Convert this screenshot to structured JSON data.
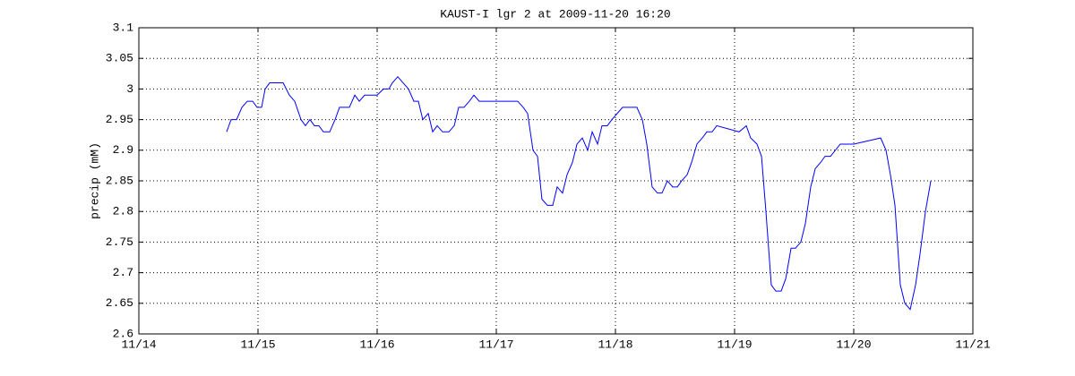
{
  "chart_data": {
    "type": "line",
    "title": "KAUST-I lgr 2 at 2009-11-20 16:20",
    "ylabel": "precip (mM)",
    "x": [
      14.737,
      14.774,
      14.82,
      14.865,
      14.91,
      14.955,
      14.992,
      15.03,
      15.06,
      15.098,
      15.211,
      15.263,
      15.308,
      15.361,
      15.398,
      15.436,
      15.474,
      15.511,
      15.549,
      15.602,
      15.647,
      15.684,
      15.767,
      15.812,
      15.85,
      15.895,
      16.0,
      16.053,
      16.098,
      16.128,
      16.173,
      16.263,
      16.308,
      16.346,
      16.383,
      16.429,
      16.466,
      16.504,
      16.549,
      16.602,
      16.647,
      16.684,
      16.729,
      16.774,
      16.812,
      16.857,
      17.18,
      17.226,
      17.263,
      17.308,
      17.346,
      17.383,
      17.429,
      17.474,
      17.511,
      17.556,
      17.594,
      17.639,
      17.677,
      17.722,
      17.767,
      17.805,
      17.85,
      17.887,
      17.932,
      17.97,
      18.015,
      18.06,
      18.18,
      18.226,
      18.263,
      18.308,
      18.353,
      18.391,
      18.436,
      18.481,
      18.519,
      18.556,
      18.602,
      18.639,
      18.684,
      18.729,
      18.767,
      18.812,
      18.85,
      19.038,
      19.098,
      19.135,
      19.188,
      19.226,
      19.263,
      19.308,
      19.346,
      19.391,
      19.429,
      19.474,
      19.511,
      19.556,
      19.594,
      19.639,
      19.677,
      19.722,
      19.759,
      19.805,
      19.887,
      20.0,
      20.226,
      20.271,
      20.308,
      20.346,
      20.391,
      20.429,
      20.474,
      20.519,
      20.556,
      20.602,
      20.647
    ],
    "series": [
      {
        "name": "precip",
        "color": "#0000ff",
        "values": [
          2.93,
          2.95,
          2.95,
          2.97,
          2.98,
          2.98,
          2.97,
          2.97,
          3.0,
          3.01,
          3.01,
          2.99,
          2.98,
          2.95,
          2.94,
          2.95,
          2.94,
          2.94,
          2.93,
          2.93,
          2.95,
          2.97,
          2.97,
          2.99,
          2.98,
          2.99,
          2.99,
          3.0,
          3.0,
          3.01,
          3.02,
          3.0,
          2.98,
          2.98,
          2.95,
          2.96,
          2.93,
          2.94,
          2.93,
          2.93,
          2.94,
          2.97,
          2.97,
          2.98,
          2.99,
          2.98,
          2.98,
          2.97,
          2.96,
          2.9,
          2.89,
          2.82,
          2.81,
          2.81,
          2.84,
          2.83,
          2.86,
          2.88,
          2.91,
          2.92,
          2.9,
          2.93,
          2.91,
          2.94,
          2.94,
          2.95,
          2.96,
          2.97,
          2.97,
          2.95,
          2.91,
          2.84,
          2.83,
          2.83,
          2.85,
          2.84,
          2.84,
          2.85,
          2.86,
          2.88,
          2.91,
          2.92,
          2.93,
          2.93,
          2.94,
          2.93,
          2.94,
          2.92,
          2.91,
          2.89,
          2.8,
          2.68,
          2.67,
          2.67,
          2.69,
          2.74,
          2.74,
          2.75,
          2.78,
          2.84,
          2.87,
          2.88,
          2.89,
          2.89,
          2.91,
          2.91,
          2.92,
          2.9,
          2.86,
          2.81,
          2.68,
          2.65,
          2.64,
          2.68,
          2.73,
          2.8,
          2.85
        ]
      }
    ],
    "xlim": [
      14,
      21
    ],
    "xticks": [
      {
        "value": 14,
        "label": "11/14"
      },
      {
        "value": 15,
        "label": "11/15"
      },
      {
        "value": 16,
        "label": "11/16"
      },
      {
        "value": 17,
        "label": "11/17"
      },
      {
        "value": 18,
        "label": "11/18"
      },
      {
        "value": 19,
        "label": "11/19"
      },
      {
        "value": 20,
        "label": "11/20"
      },
      {
        "value": 21,
        "label": "11/21"
      }
    ],
    "ylim": [
      2.6,
      3.1
    ],
    "yticks": [
      2.6,
      2.65,
      2.7,
      2.75,
      2.8,
      2.85,
      2.9,
      2.95,
      3,
      3.05,
      3.1
    ],
    "grid": true
  }
}
